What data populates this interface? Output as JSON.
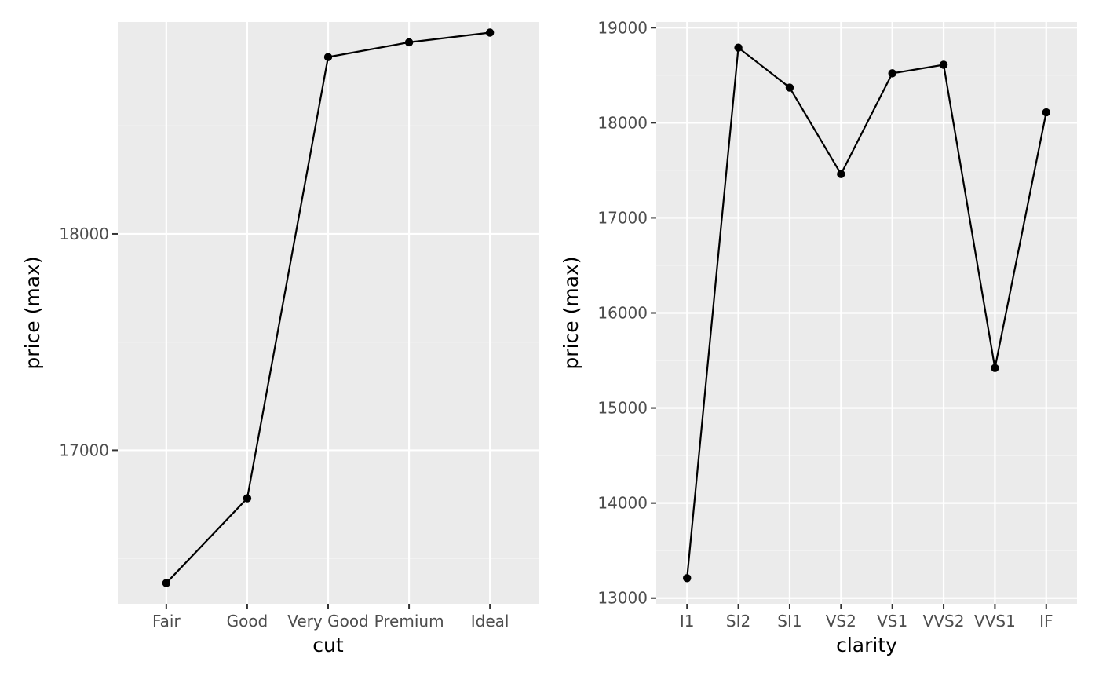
{
  "colors": {
    "panel": "#ebebeb",
    "grid_major": "#ffffff",
    "grid_minor": "#f5f5f5",
    "tick": "#333333",
    "tick_label": "#4d4d4d",
    "mark": "#000000"
  },
  "chart_data": [
    {
      "type": "line",
      "xlabel": "cut",
      "ylabel": "price (max)",
      "categories": [
        "Fair",
        "Good",
        "Very Good",
        "Premium",
        "Ideal"
      ],
      "values": [
        16386,
        16778,
        18818,
        18886,
        18931
      ],
      "ylim": [
        16290,
        18980
      ],
      "yticks": [
        17000,
        18000
      ],
      "yminor": [
        16500,
        17500,
        18500
      ],
      "grid": true,
      "points": true,
      "legend": "none"
    },
    {
      "type": "line",
      "xlabel": "clarity",
      "ylabel": "price (max)",
      "categories": [
        "I1",
        "SI2",
        "SI1",
        "VS2",
        "VS1",
        "VVS2",
        "VVS1",
        "IF"
      ],
      "values": [
        13210,
        18790,
        18370,
        17460,
        18520,
        18610,
        15420,
        18110
      ],
      "ylim": [
        12940,
        19060
      ],
      "yticks": [
        13000,
        14000,
        15000,
        16000,
        17000,
        18000,
        19000
      ],
      "yminor": [
        13500,
        14500,
        15500,
        16500,
        17500,
        18500
      ],
      "grid": true,
      "points": true,
      "legend": "none"
    }
  ]
}
